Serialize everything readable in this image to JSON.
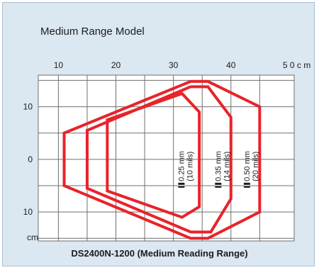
{
  "chart_data": {
    "type": "line",
    "title": "Medium Range Model",
    "caption": "DS2400N-1200 (Medium Reading Range)",
    "x_unit": "cm",
    "y_unit": "cm",
    "xlim": [
      6.5,
      51
    ],
    "ylim": [
      -15.5,
      16
    ],
    "x_ticks": [
      {
        "value": 10,
        "label": "10"
      },
      {
        "value": 20,
        "label": "20"
      },
      {
        "value": 30,
        "label": "30"
      },
      {
        "value": 40,
        "label": "40"
      },
      {
        "value": 50,
        "label": "5 0 c m"
      }
    ],
    "y_ticks": [
      {
        "value": 10,
        "label": "10"
      },
      {
        "value": 0,
        "label": "0"
      },
      {
        "value": -10,
        "label": "10"
      }
    ],
    "grid": true,
    "color": "#e8232a",
    "series": [
      {
        "name": "0.25 mm",
        "sub": "(10 mils)",
        "points": [
          [
            18.5,
            7.5
          ],
          [
            31.5,
            12.5
          ],
          [
            34.5,
            9
          ],
          [
            34.5,
            -9
          ],
          [
            31.5,
            -11
          ],
          [
            18.5,
            -6
          ]
        ],
        "label_x": 31.2
      },
      {
        "name": "0.35 mm",
        "sub": "(14 mils)",
        "points": [
          [
            15,
            5.5
          ],
          [
            33,
            13.8
          ],
          [
            36,
            13.8
          ],
          [
            40,
            8
          ],
          [
            40,
            -7.5
          ],
          [
            36.5,
            -13.8
          ],
          [
            33,
            -13.8
          ],
          [
            15,
            -5.5
          ]
        ],
        "label_x": 37.6
      },
      {
        "name": "0.50 mm",
        "sub": "(20 mils)",
        "points": [
          [
            11,
            5
          ],
          [
            33,
            14.8
          ],
          [
            36,
            14.8
          ],
          [
            45,
            10
          ],
          [
            45,
            -10
          ],
          [
            36,
            -15
          ],
          [
            33,
            -15
          ],
          [
            11,
            -5
          ]
        ],
        "label_x": 42.6
      }
    ]
  }
}
